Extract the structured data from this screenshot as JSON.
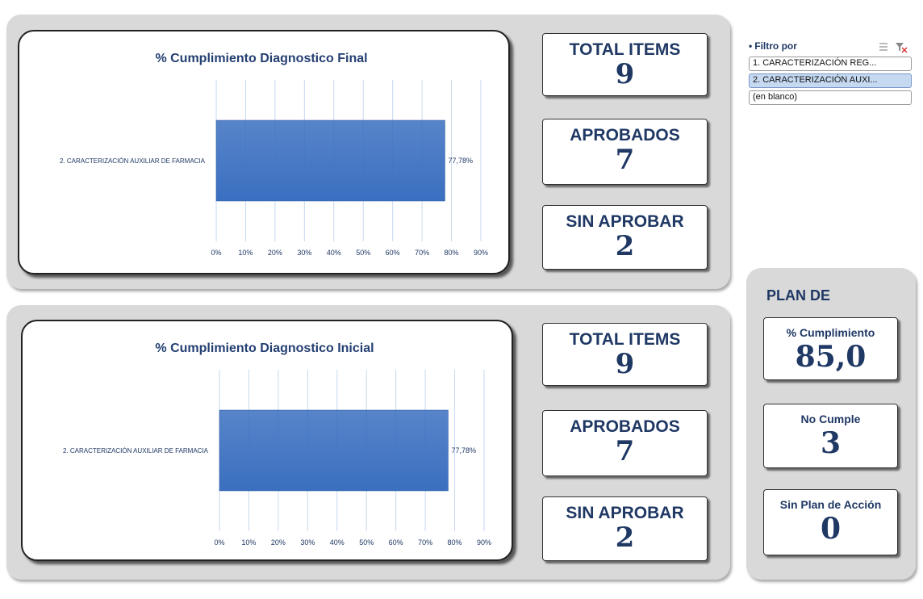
{
  "chart_data": [
    {
      "type": "bar",
      "orientation": "horizontal",
      "title": "% Cumplimiento Diagnostico Final",
      "categories": [
        "2. CARACTERIZACIÓN AUXILIAR DE FARMACIA"
      ],
      "values": [
        77.78
      ],
      "value_labels": [
        "77,78%"
      ],
      "color": "#3a6fc0",
      "xlim": [
        0,
        90
      ],
      "xticks": [
        {
          "value": 0,
          "label": "0%"
        },
        {
          "value": 10,
          "label": "10%"
        },
        {
          "value": 20,
          "label": "20%"
        },
        {
          "value": 30,
          "label": "30%"
        },
        {
          "value": 40,
          "label": "40%"
        },
        {
          "value": 50,
          "label": "50%"
        },
        {
          "value": 60,
          "label": "60%"
        },
        {
          "value": 70,
          "label": "70%"
        },
        {
          "value": 80,
          "label": "80%"
        },
        {
          "value": 90,
          "label": "90%"
        }
      ],
      "grid": true
    },
    {
      "type": "bar",
      "orientation": "horizontal",
      "title": "% Cumplimiento Diagnostico Inicial",
      "categories": [
        "2. CARACTERIZACIÓN AUXILIAR DE FARMACIA"
      ],
      "values": [
        77.78
      ],
      "value_labels": [
        "77,78%"
      ],
      "color": "#3a6fc0",
      "xlim": [
        0,
        90
      ],
      "xticks": [
        {
          "value": 0,
          "label": "0%"
        },
        {
          "value": 10,
          "label": "10%"
        },
        {
          "value": 20,
          "label": "20%"
        },
        {
          "value": 30,
          "label": "30%"
        },
        {
          "value": 40,
          "label": "40%"
        },
        {
          "value": 50,
          "label": "50%"
        },
        {
          "value": 60,
          "label": "60%"
        },
        {
          "value": 70,
          "label": "70%"
        },
        {
          "value": 80,
          "label": "80%"
        },
        {
          "value": 90,
          "label": "90%"
        }
      ],
      "grid": true
    }
  ],
  "kpis": [
    [
      {
        "label": "TOTAL ITEMS",
        "value": 9
      },
      {
        "label": "APROBADOS",
        "value": 7
      },
      {
        "label": "SIN APROBAR",
        "value": 2
      }
    ],
    [
      {
        "label": "TOTAL ITEMS",
        "value": 9
      },
      {
        "label": "APROBADOS",
        "value": 7
      },
      {
        "label": "SIN APROBAR",
        "value": 2
      }
    ]
  ],
  "slicer": {
    "title": "Filtro por",
    "items": [
      "1. CARACTERIZACIÓN REG...",
      "2. CARACTERIZACIÓN AUXI...",
      "(en blanco)"
    ],
    "selected": 1
  },
  "plan": {
    "title": "PLAN DE",
    "cards": [
      {
        "label": "% Cumplimiento",
        "value": "85,0"
      },
      {
        "label": "No Cumple",
        "value": 3
      },
      {
        "label": "Sin Plan de Acción",
        "value": 0
      }
    ]
  }
}
